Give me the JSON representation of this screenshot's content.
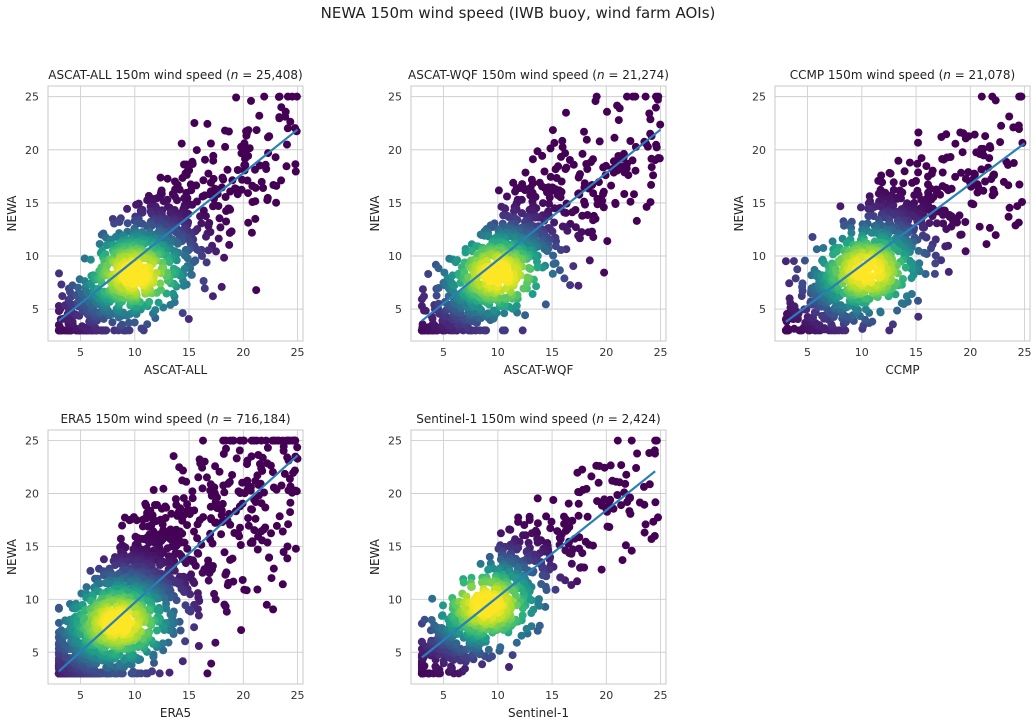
{
  "figure": {
    "suptitle": "NEWA 150m wind speed (IWB buoy, wind farm AOIs)"
  },
  "style": {
    "regression_color": "#2a7fb8",
    "grid_color": "#cfcfcf",
    "spine_color": "#c8c8c8",
    "colormap": "viridis"
  },
  "chart_data": [
    {
      "type": "scatter",
      "title_prefix": "ASCAT-ALL 150m wind speed (",
      "title_n_symbol": "n",
      "title_suffix": " = 25,408)",
      "xlabel": "ASCAT-ALL",
      "ylabel": "NEWA",
      "xlim": [
        2,
        25.5
      ],
      "ylim": [
        2,
        26
      ],
      "xticks": [
        5,
        10,
        15,
        20,
        25
      ],
      "yticks": [
        5,
        10,
        15,
        20,
        25
      ],
      "grid": true,
      "color_by": "point density (viridis)",
      "n": 25408,
      "regression_line": {
        "x": [
          3,
          25
        ],
        "y": [
          3.9,
          21.9
        ]
      },
      "density_center": [
        10,
        8.3
      ],
      "cloud": {
        "xrange": [
          3,
          25
        ],
        "yrange": [
          3,
          25
        ],
        "slope": 0.85,
        "intercept": 0.5,
        "spread": 2.7
      }
    },
    {
      "type": "scatter",
      "title_prefix": "ASCAT-WQF 150m wind speed (",
      "title_n_symbol": "n",
      "title_suffix": " = 21,274)",
      "xlabel": "ASCAT-WQF",
      "ylabel": "NEWA",
      "xlim": [
        2,
        25.5
      ],
      "ylim": [
        2,
        26
      ],
      "xticks": [
        5,
        10,
        15,
        20,
        25
      ],
      "yticks": [
        5,
        10,
        15,
        20,
        25
      ],
      "grid": true,
      "color_by": "point density (viridis)",
      "n": 21274,
      "regression_line": {
        "x": [
          3,
          25
        ],
        "y": [
          3.9,
          21.9
        ]
      },
      "density_center": [
        10,
        8.3
      ],
      "cloud": {
        "xrange": [
          3,
          25
        ],
        "yrange": [
          3,
          25
        ],
        "slope": 0.85,
        "intercept": 0.5,
        "spread": 2.6
      }
    },
    {
      "type": "scatter",
      "title_prefix": "CCMP 150m wind speed (",
      "title_n_symbol": "n",
      "title_suffix": " = 21,078)",
      "xlabel": "CCMP",
      "ylabel": "NEWA",
      "xlim": [
        2,
        25.5
      ],
      "ylim": [
        2,
        26
      ],
      "xticks": [
        5,
        10,
        15,
        20,
        25
      ],
      "yticks": [
        5,
        10,
        15,
        20,
        25
      ],
      "grid": true,
      "color_by": "point density (viridis)",
      "n": 21078,
      "regression_line": {
        "x": [
          3,
          25
        ],
        "y": [
          3.8,
          20.6
        ]
      },
      "density_center": [
        10.5,
        8.6
      ],
      "cloud": {
        "xrange": [
          3,
          25
        ],
        "yrange": [
          3,
          25
        ],
        "slope": 0.78,
        "intercept": 1.2,
        "spread": 2.6
      }
    },
    {
      "type": "scatter",
      "title_prefix": "ERA5 150m wind speed (",
      "title_n_symbol": "n",
      "title_suffix": " = 716,184)",
      "xlabel": "ERA5",
      "ylabel": "NEWA",
      "xlim": [
        2,
        25.5
      ],
      "ylim": [
        2,
        26
      ],
      "xticks": [
        5,
        10,
        15,
        20,
        25
      ],
      "yticks": [
        5,
        10,
        15,
        20,
        25
      ],
      "grid": true,
      "color_by": "point density (viridis)",
      "n": 716184,
      "regression_line": {
        "x": [
          3,
          25
        ],
        "y": [
          3.2,
          23.6
        ]
      },
      "density_center": [
        8.5,
        7.8
      ],
      "cloud": {
        "xrange": [
          3,
          25
        ],
        "yrange": [
          3,
          25
        ],
        "slope": 0.93,
        "intercept": 0.3,
        "spread": 3.4
      }
    },
    {
      "type": "scatter",
      "title_prefix": "Sentinel-1 150m wind speed (",
      "title_n_symbol": "n",
      "title_suffix": " = 2,424)",
      "xlabel": "Sentinel-1",
      "ylabel": "NEWA",
      "xlim": [
        2,
        25.5
      ],
      "ylim": [
        2,
        26
      ],
      "xticks": [
        5,
        10,
        15,
        20,
        25
      ],
      "yticks": [
        5,
        10,
        15,
        20,
        25
      ],
      "grid": true,
      "color_by": "point density (viridis)",
      "n": 2424,
      "regression_line": {
        "x": [
          3,
          24.5
        ],
        "y": [
          4.5,
          22.1
        ]
      },
      "density_center": [
        9,
        9.5
      ],
      "cloud": {
        "xrange": [
          3,
          25
        ],
        "yrange": [
          3,
          25
        ],
        "slope": 0.85,
        "intercept": 1.5,
        "spread": 2.3
      }
    }
  ]
}
